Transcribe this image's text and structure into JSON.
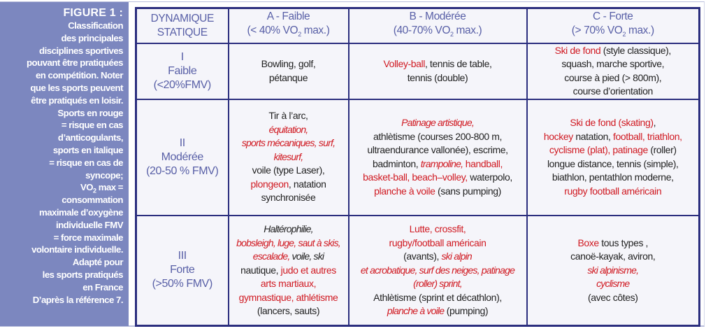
{
  "sidebar": {
    "figure_label": "FIGURE 1 :",
    "caption_lines": [
      "Classification",
      "des principales",
      "disciplines sportives",
      "pouvant être pratiquées",
      "en compétition. Noter",
      "que les sports peuvent",
      "être pratiqués en loisir.",
      "Sports en rouge",
      "= risque en cas",
      "d’anticogulants,",
      "sports en italique",
      "= risque en cas de",
      "syncope;"
    ],
    "vo2_prefix": "VO",
    "vo2_sub": "2",
    "vo2_suffix": " max =",
    "caption_lines_2": [
      "consommation",
      "maximale d’oxygène",
      "individuelle FMV",
      "= force maximale",
      "volontaire individuelle.",
      "Adapté pour",
      "les sports pratiqués",
      "en France",
      "D’après la référence 7."
    ]
  },
  "colors": {
    "red": "#d01a22",
    "border": "#2b2e7e",
    "header_text": "#5960a7",
    "sidebar_bg": "#7c87bf"
  },
  "table": {
    "header": [
      [
        [
          {
            "t": "DYNAMIQUE"
          }
        ],
        [
          {
            "t": "STATIQUE"
          }
        ]
      ],
      [
        [
          {
            "t": "A - Faible"
          }
        ],
        [
          {
            "t": "(< 40% VO"
          },
          {
            "t": "2",
            "sub": true
          },
          {
            "t": " max.)"
          }
        ]
      ],
      [
        [
          {
            "t": "B - Modérée"
          }
        ],
        [
          {
            "t": "(40-70% VO"
          },
          {
            "t": "2",
            "sub": true
          },
          {
            "t": " max.)"
          }
        ]
      ],
      [
        [
          {
            "t": "C - Forte"
          }
        ],
        [
          {
            "t": "(> 70% VO"
          },
          {
            "t": "2",
            "sub": true
          },
          {
            "t": " max.)"
          }
        ]
      ]
    ],
    "rows": [
      {
        "head": [
          [
            {
              "t": "I"
            }
          ],
          [
            {
              "t": "Faible"
            }
          ],
          [
            {
              "t": "(<20%FMV)"
            }
          ]
        ],
        "cells": [
          [
            [
              {
                "t": "Bowling, golf,"
              }
            ],
            [
              {
                "t": "pétanque"
              }
            ]
          ],
          [
            [
              {
                "t": "Volley-ball",
                "r": true
              },
              {
                "t": ", tennis de table,"
              }
            ],
            [
              {
                "t": "tennis (double)"
              }
            ]
          ],
          [
            [
              {
                "t": "Ski de fond",
                "r": true
              },
              {
                "t": " (style classique),"
              }
            ],
            [
              {
                "t": "squash, marche sportive,"
              }
            ],
            [
              {
                "t": "course à pied (> 800m),"
              }
            ],
            [
              {
                "t": "course d’orientation"
              }
            ]
          ]
        ]
      },
      {
        "head": [
          [
            {
              "t": "II"
            }
          ],
          [
            {
              "t": "Modérée"
            }
          ],
          [
            {
              "t": "(20-50 % FMV)"
            }
          ]
        ],
        "cells": [
          [
            [
              {
                "t": "Tir à l’arc,"
              }
            ],
            [
              {
                "t": "équitation,",
                "r": true,
                "i": true
              }
            ],
            [
              {
                "t": "sports mécaniques, surf,",
                "r": true,
                "i": true
              }
            ],
            [
              {
                "t": "kitesurf,",
                "r": true,
                "i": true
              }
            ],
            [
              {
                "t": "voile (type Laser),"
              }
            ],
            [
              {
                "t": "plongeon",
                "r": true
              },
              {
                "t": ", natation"
              }
            ],
            [
              {
                "t": "synchronisée"
              }
            ]
          ],
          [
            [
              {
                "t": "Patinage artistique,",
                "r": true,
                "i": true
              }
            ],
            [
              {
                "t": "athlètisme (courses 200-800 m,"
              }
            ],
            [
              {
                "t": "ultraendurance vallonée), escrime,"
              }
            ],
            [
              {
                "t": "badminton, "
              },
              {
                "t": "trampoline,",
                "r": true,
                "i": true
              },
              {
                "t": " handball,",
                "r": true
              }
            ],
            [
              {
                "t": "basket-ball, beach–volley,",
                "r": true
              },
              {
                "t": " waterpolo,"
              }
            ],
            [
              {
                "t": "planche à voile",
                "r": true
              },
              {
                "t": " (sans pumping)"
              }
            ]
          ],
          [
            [
              {
                "t": "Ski de fond (skating)",
                "r": true
              },
              {
                "t": ","
              }
            ],
            [
              {
                "t": "hockey",
                "r": true
              },
              {
                "t": " natation, "
              },
              {
                "t": "football, triathlon,",
                "r": true
              }
            ],
            [
              {
                "t": "cyclisme (plat),  patinage",
                "r": true
              },
              {
                "t": " (roller)"
              }
            ],
            [
              {
                "t": "longue distance, tennis (simple),"
              }
            ],
            [
              {
                "t": "biathlon, pentathlon moderne,"
              }
            ],
            [
              {
                "t": "rugby football américain",
                "r": true
              }
            ]
          ]
        ]
      },
      {
        "head": [
          [
            {
              "t": "III"
            }
          ],
          [
            {
              "t": "Forte"
            }
          ],
          [
            {
              "t": "(>50% FMV)"
            }
          ]
        ],
        "cells": [
          [
            [
              {
                "t": "Haltérophilie,",
                "i": true
              }
            ],
            [
              {
                "t": "bobsleigh, luge, saut à skis,",
                "r": true,
                "i": true
              }
            ],
            [
              {
                "t": "escalade,",
                "r": true,
                "i": true
              },
              {
                "t": " voile, ski",
                "i": true
              }
            ],
            [
              {
                "t": "nautique, "
              },
              {
                "t": "judo et autres",
                "r": true
              }
            ],
            [
              {
                "t": "arts martiaux,",
                "r": true
              }
            ],
            [
              {
                "t": "gymnastique, athlétisme",
                "r": true
              }
            ],
            [
              {
                "t": "(lancers, sauts)"
              }
            ]
          ],
          [
            [
              {
                "t": "Lutte, crossfit,",
                "r": true
              }
            ],
            [
              {
                "t": "rugby/football américain",
                "r": true
              }
            ],
            [
              {
                "t": "(avants), "
              },
              {
                "t": "ski alpin",
                "r": true,
                "i": true
              }
            ],
            [
              {
                "t": "et acrobatique, surf des neiges, patinage",
                "r": true,
                "i": true
              }
            ],
            [
              {
                "t": "(roller) sprint,",
                "r": true,
                "i": true
              }
            ],
            [
              {
                "t": "Athlètisme (sprint et décathlon),"
              }
            ],
            [
              {
                "t": "planche à voile",
                "r": true,
                "i": true
              },
              {
                "t": " (pumping)"
              }
            ]
          ],
          [
            [
              {
                "t": "Boxe",
                "r": true
              },
              {
                "t": " tous types ,"
              }
            ],
            [
              {
                "t": "canoë-kayak, aviron,"
              }
            ],
            [
              {
                "t": "ski alpinisme,",
                "r": true,
                "i": true
              }
            ],
            [
              {
                "t": "cyclisme",
                "r": true,
                "i": true
              }
            ],
            [
              {
                "t": "(avec côtes)"
              }
            ]
          ]
        ]
      }
    ]
  }
}
